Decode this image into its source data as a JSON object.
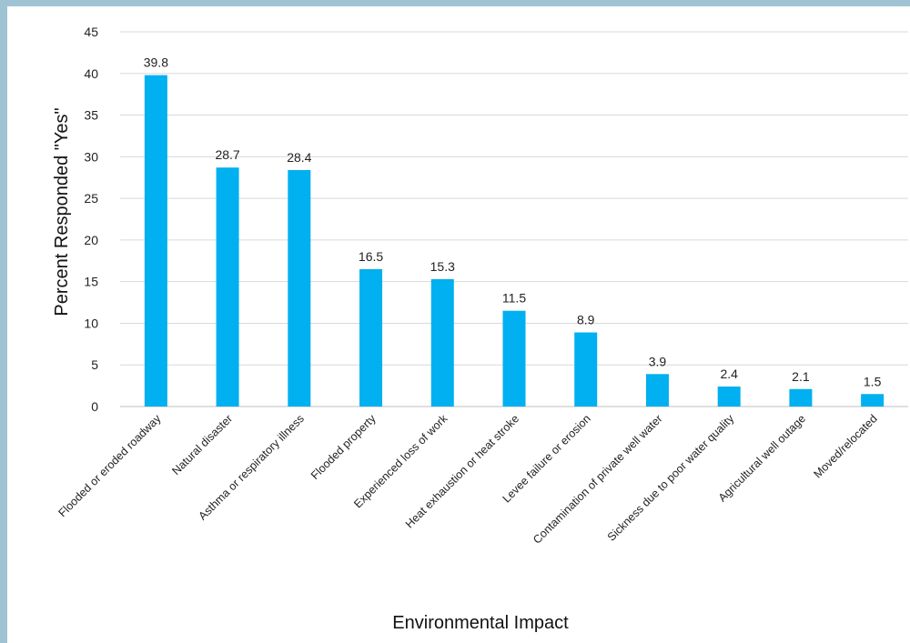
{
  "chart_data": {
    "type": "bar",
    "title": "",
    "xlabel": "Environmental Impact",
    "ylabel": "Percent Responded \"Yes\"",
    "ylim": [
      0,
      45
    ],
    "yticks": [
      0,
      5,
      10,
      15,
      20,
      25,
      30,
      35,
      40,
      45
    ],
    "grid": true,
    "bar_color": "#00b0f0",
    "categories": [
      "Flooded or eroded roadway",
      "Natural disaster",
      "Asthma or respiratory illness",
      "Flooded property",
      "Experienced loss of work",
      "Heat exhaustion or heat stroke",
      "Levee failure or erosion",
      "Contamination of private well water",
      "Sickness due to poor water quality",
      "Agricultural well outage",
      "Moved/relocated"
    ],
    "values": [
      39.8,
      28.7,
      28.4,
      16.5,
      15.3,
      11.5,
      8.9,
      3.9,
      2.4,
      2.1,
      1.5
    ],
    "data_labels": [
      "39.8",
      "28.7",
      "28.4",
      "16.5",
      "15.3",
      "11.5",
      "8.9",
      "3.9",
      "2.4",
      "2.1",
      "1.5"
    ]
  }
}
